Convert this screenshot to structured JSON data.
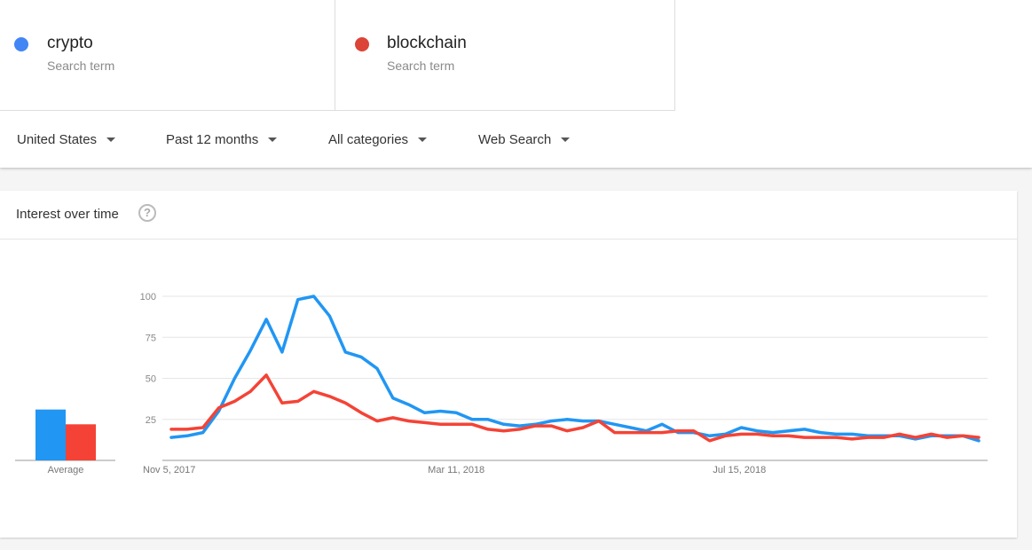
{
  "terms": [
    {
      "name": "crypto",
      "sub": "Search term",
      "color": "#4285f4"
    },
    {
      "name": "blockchain",
      "sub": "Search term",
      "color": "#db4437"
    }
  ],
  "filters": {
    "region": "United States",
    "time": "Past 12 months",
    "category": "All categories",
    "search_type": "Web Search"
  },
  "card": {
    "title": "Interest over time",
    "help_icon": "question-circle-icon",
    "average_label": "Average"
  },
  "chart_data": {
    "type": "line",
    "y_ticks": [
      "100",
      "75",
      "50",
      "25"
    ],
    "x_tick_labels": [
      "Nov 5, 2017",
      "Mar 11, 2018",
      "Jul 15, 2018"
    ],
    "ylim": [
      0,
      100
    ],
    "grid": true,
    "averages": [
      {
        "name": "crypto",
        "value": 31,
        "color": "#2196f3"
      },
      {
        "name": "blockchain",
        "value": 22,
        "color": "#f44336"
      }
    ],
    "series": [
      {
        "name": "crypto",
        "color": "#2196f3",
        "values": [
          14,
          15,
          17,
          30,
          50,
          67,
          86,
          66,
          98,
          100,
          88,
          66,
          63,
          56,
          38,
          34,
          29,
          30,
          29,
          25,
          25,
          22,
          21,
          22,
          24,
          25,
          24,
          24,
          22,
          20,
          18,
          22,
          17,
          17,
          15,
          16,
          20,
          18,
          17,
          18,
          19,
          17,
          16,
          16,
          15,
          15,
          15,
          13,
          15,
          15,
          15,
          12
        ]
      },
      {
        "name": "blockchain",
        "color": "#f44336",
        "values": [
          19,
          19,
          20,
          32,
          36,
          42,
          52,
          35,
          36,
          42,
          39,
          35,
          29,
          24,
          26,
          24,
          23,
          22,
          22,
          22,
          19,
          18,
          19,
          21,
          21,
          18,
          20,
          24,
          17,
          17,
          17,
          17,
          18,
          18,
          12,
          15,
          16,
          16,
          15,
          15,
          14,
          14,
          14,
          13,
          14,
          14,
          16,
          14,
          16,
          14,
          15,
          14
        ]
      }
    ]
  }
}
